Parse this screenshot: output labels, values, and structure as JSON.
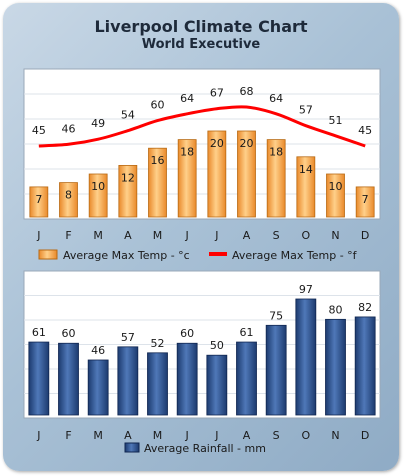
{
  "title": "Liverpool Climate Chart",
  "subtitle": "World Executive",
  "chart_data": [
    {
      "type": "bar",
      "categories": [
        "J",
        "F",
        "M",
        "A",
        "M",
        "J",
        "J",
        "A",
        "S",
        "O",
        "N",
        "D"
      ],
      "series": [
        {
          "name": "Average Max Temp - °c",
          "type": "bar",
          "values": [
            7,
            8,
            10,
            12,
            16,
            18,
            20,
            20,
            18,
            14,
            10,
            7
          ],
          "color": "#f5a443"
        },
        {
          "name": "Average Max Temp - °f",
          "type": "line",
          "values": [
            45,
            46,
            49,
            54,
            60,
            64,
            67,
            68,
            64,
            57,
            51,
            45
          ],
          "color": "#ff0000"
        }
      ],
      "legend": "bottom",
      "grid": true
    },
    {
      "type": "bar",
      "categories": [
        "J",
        "F",
        "M",
        "A",
        "M",
        "J",
        "J",
        "A",
        "S",
        "O",
        "N",
        "D"
      ],
      "series": [
        {
          "name": "Average Rainfall - mm",
          "values": [
            61,
            60,
            46,
            57,
            52,
            60,
            50,
            61,
            75,
            97,
            80,
            82
          ],
          "color": "#2b4f8c"
        }
      ],
      "legend": "bottom",
      "grid": true
    }
  ]
}
